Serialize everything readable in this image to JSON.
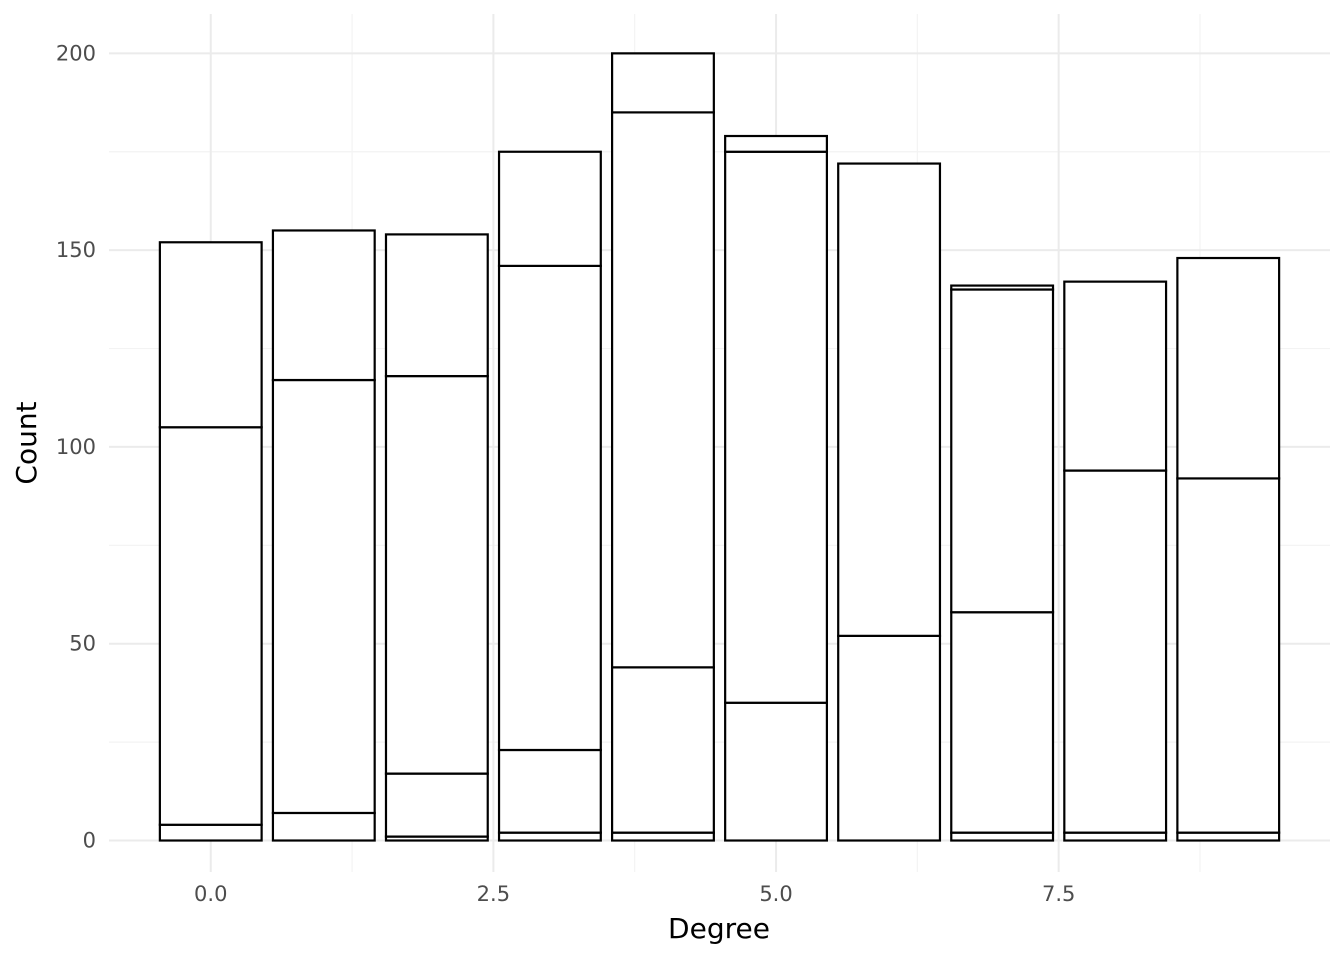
{
  "chart_data": {
    "type": "bar",
    "stacked": true,
    "xlabel": "Degree",
    "ylabel": "Count",
    "xlim": [
      -0.9,
      9.9
    ],
    "ylim": [
      -8,
      210
    ],
    "x_breaks": [
      0,
      2.5,
      5,
      7.5
    ],
    "x_tick_labels": [
      "0.0",
      "2.5",
      "5.0",
      "7.5"
    ],
    "x_minor_breaks": [
      1.25,
      3.75,
      6.25,
      8.75
    ],
    "y_breaks": [
      0,
      50,
      100,
      150,
      200
    ],
    "y_tick_labels": [
      "0",
      "50",
      "100",
      "150",
      "200"
    ],
    "y_minor_breaks": [
      25,
      75,
      125,
      175
    ],
    "bar_width": 0.9,
    "fill_color": "#ffffff",
    "outline_color": "#000000",
    "background": "#ffffff",
    "grid": true,
    "legend": "none",
    "bars": [
      {
        "x": 0,
        "segment_tops": [
          4,
          105,
          152
        ]
      },
      {
        "x": 1,
        "segment_tops": [
          7,
          117,
          155
        ]
      },
      {
        "x": 2,
        "segment_tops": [
          1,
          17,
          118,
          154
        ]
      },
      {
        "x": 3,
        "segment_tops": [
          2,
          23,
          146,
          175
        ]
      },
      {
        "x": 4,
        "segment_tops": [
          2,
          44,
          185,
          200
        ]
      },
      {
        "x": 5,
        "segment_tops": [
          35,
          175,
          179
        ]
      },
      {
        "x": 6,
        "segment_tops": [
          52,
          172
        ]
      },
      {
        "x": 7,
        "segment_tops": [
          2,
          58,
          140,
          141
        ]
      },
      {
        "x": 8,
        "segment_tops": [
          2,
          94,
          142
        ]
      },
      {
        "x": 9,
        "segment_tops": [
          2,
          92,
          148
        ]
      }
    ]
  }
}
